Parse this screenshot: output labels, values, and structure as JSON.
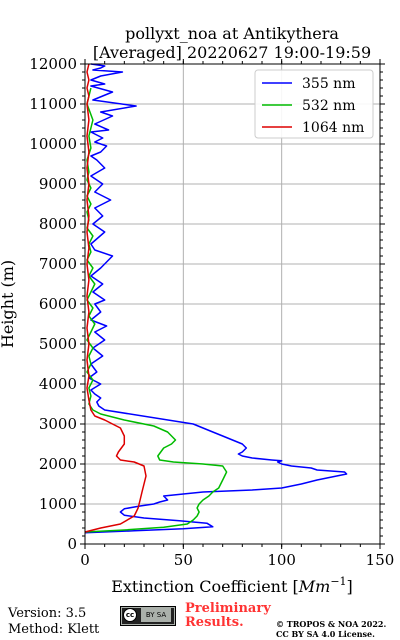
{
  "chart_data": {
    "type": "line",
    "title": "pollyxt_noa at Antikythera",
    "subtitle": "[Averaged] 20220627 19:00-19:59",
    "xlabel": "Extinction Coefficient [Mm⁻¹]",
    "xlabel_main": "Extinction Coefficient [",
    "xlabel_unit": "Mm",
    "xlabel_exp": "−1",
    "xlabel_end": "]",
    "ylabel": "Height (m)",
    "xlim": [
      0,
      150
    ],
    "ylim": [
      0,
      12000
    ],
    "xticks": [
      0,
      50,
      100,
      150
    ],
    "yticks": [
      0,
      1000,
      2000,
      3000,
      4000,
      5000,
      6000,
      7000,
      8000,
      9000,
      10000,
      11000,
      12000
    ],
    "grid": true,
    "legend_position": "top-right",
    "series": [
      {
        "name": "355 nm",
        "color": "#0000ff",
        "x": [
          0,
          25,
          50,
          65,
          62,
          48,
          30,
          20,
          18,
          20,
          28,
          35,
          38,
          42,
          40,
          50,
          60,
          85,
          100,
          110,
          118,
          128,
          133,
          132,
          118,
          115,
          105,
          100,
          98,
          100,
          95,
          85,
          80,
          78,
          80,
          82,
          80,
          75,
          70,
          65,
          55,
          10,
          7,
          6,
          8,
          5,
          3,
          8,
          2,
          6,
          3,
          9,
          4,
          10,
          5,
          11,
          3,
          8,
          5,
          10,
          4,
          9,
          3,
          8,
          14,
          5,
          3,
          10,
          4,
          9,
          5,
          13,
          5,
          9,
          3,
          10,
          6,
          3,
          8,
          11,
          5,
          9,
          3,
          12,
          5,
          14,
          8,
          26,
          4,
          9,
          14,
          3,
          10,
          3,
          8,
          19,
          4,
          8,
          10,
          3
        ],
        "y": [
          280,
          330,
          380,
          430,
          520,
          580,
          650,
          720,
          800,
          880,
          950,
          1000,
          1050,
          1100,
          1200,
          1250,
          1300,
          1350,
          1400,
          1500,
          1600,
          1700,
          1750,
          1800,
          1850,
          1900,
          1950,
          2000,
          2050,
          2080,
          2100,
          2150,
          2200,
          2250,
          2300,
          2400,
          2500,
          2600,
          2700,
          2800,
          3000,
          3350,
          3450,
          3550,
          3650,
          3750,
          3850,
          4000,
          4150,
          4300,
          4500,
          4700,
          4900,
          5100,
          5300,
          5450,
          5600,
          5800,
          6000,
          6100,
          6300,
          6500,
          6700,
          6900,
          7200,
          7350,
          7500,
          7800,
          8000,
          8200,
          8400,
          8600,
          8800,
          9000,
          9200,
          9400,
          9600,
          9700,
          9800,
          9950,
          10050,
          10150,
          10300,
          10350,
          10500,
          10700,
          10800,
          10950,
          11100,
          11200,
          11300,
          11450,
          11500,
          11600,
          11700,
          11800,
          11850,
          11900,
          11950,
          12000
        ]
      },
      {
        "name": "532 nm",
        "color": "#00bb00",
        "x": [
          0,
          20,
          40,
          52,
          55,
          57,
          58,
          57,
          58,
          60,
          63,
          65,
          68,
          70,
          72,
          70,
          60,
          45,
          38,
          37,
          40,
          44,
          46,
          42,
          35,
          20,
          8,
          4,
          2,
          3,
          2,
          4,
          1,
          3,
          2,
          4,
          1,
          3,
          5,
          2,
          4,
          1,
          3,
          5,
          2,
          4,
          1,
          3,
          2,
          4,
          1,
          2,
          1,
          3,
          1,
          3,
          1,
          2,
          1,
          3,
          2,
          4,
          1,
          3
        ],
        "y": [
          300,
          350,
          420,
          500,
          600,
          700,
          800,
          900,
          1000,
          1100,
          1200,
          1300,
          1400,
          1600,
          1800,
          1950,
          2000,
          2050,
          2100,
          2200,
          2400,
          2500,
          2600,
          2800,
          2950,
          3100,
          3250,
          3350,
          3500,
          3700,
          3900,
          4100,
          4300,
          4500,
          4700,
          4900,
          5100,
          5300,
          5500,
          5700,
          5900,
          6100,
          6300,
          6500,
          6700,
          6900,
          7100,
          7300,
          7500,
          7700,
          7900,
          8100,
          8300,
          8500,
          8700,
          8900,
          9100,
          9300,
          9600,
          9900,
          10200,
          10600,
          11000,
          11400
        ]
      },
      {
        "name": "1064 nm",
        "color": "#dd0000",
        "x": [
          0,
          8,
          18,
          25,
          27,
          28,
          29,
          30,
          31,
          30,
          25,
          18,
          16,
          17,
          20,
          20,
          18,
          14,
          10,
          5,
          3,
          2,
          1,
          2,
          1,
          2,
          1,
          2,
          1,
          2,
          1,
          2,
          1,
          2,
          1,
          2,
          1,
          2,
          1,
          2,
          1,
          2,
          1,
          2,
          1,
          2
        ],
        "y": [
          300,
          400,
          500,
          700,
          900,
          1100,
          1300,
          1500,
          1700,
          1950,
          2050,
          2100,
          2200,
          2300,
          2500,
          2700,
          2900,
          3000,
          3100,
          3200,
          3350,
          3600,
          3900,
          4200,
          4600,
          5000,
          5400,
          5800,
          6200,
          6600,
          7000,
          7400,
          7800,
          8200,
          8600,
          9000,
          9400,
          9800,
          10200,
          10600,
          11000,
          11200,
          11400,
          11600,
          11800,
          12000
        ]
      }
    ]
  },
  "footer": {
    "version": "Version: 3.5",
    "method": "Method: Klett",
    "license_badge_icon": "cc-by-sa-icon",
    "license_badge_text": "cc",
    "license_badge_by": "BY  SA",
    "preliminary_line1": "Preliminary",
    "preliminary_line2": "Results.",
    "copyright_line1": "© TROPOS & NOA 2022.",
    "copyright_line2": "CC BY SA 4.0 License."
  }
}
